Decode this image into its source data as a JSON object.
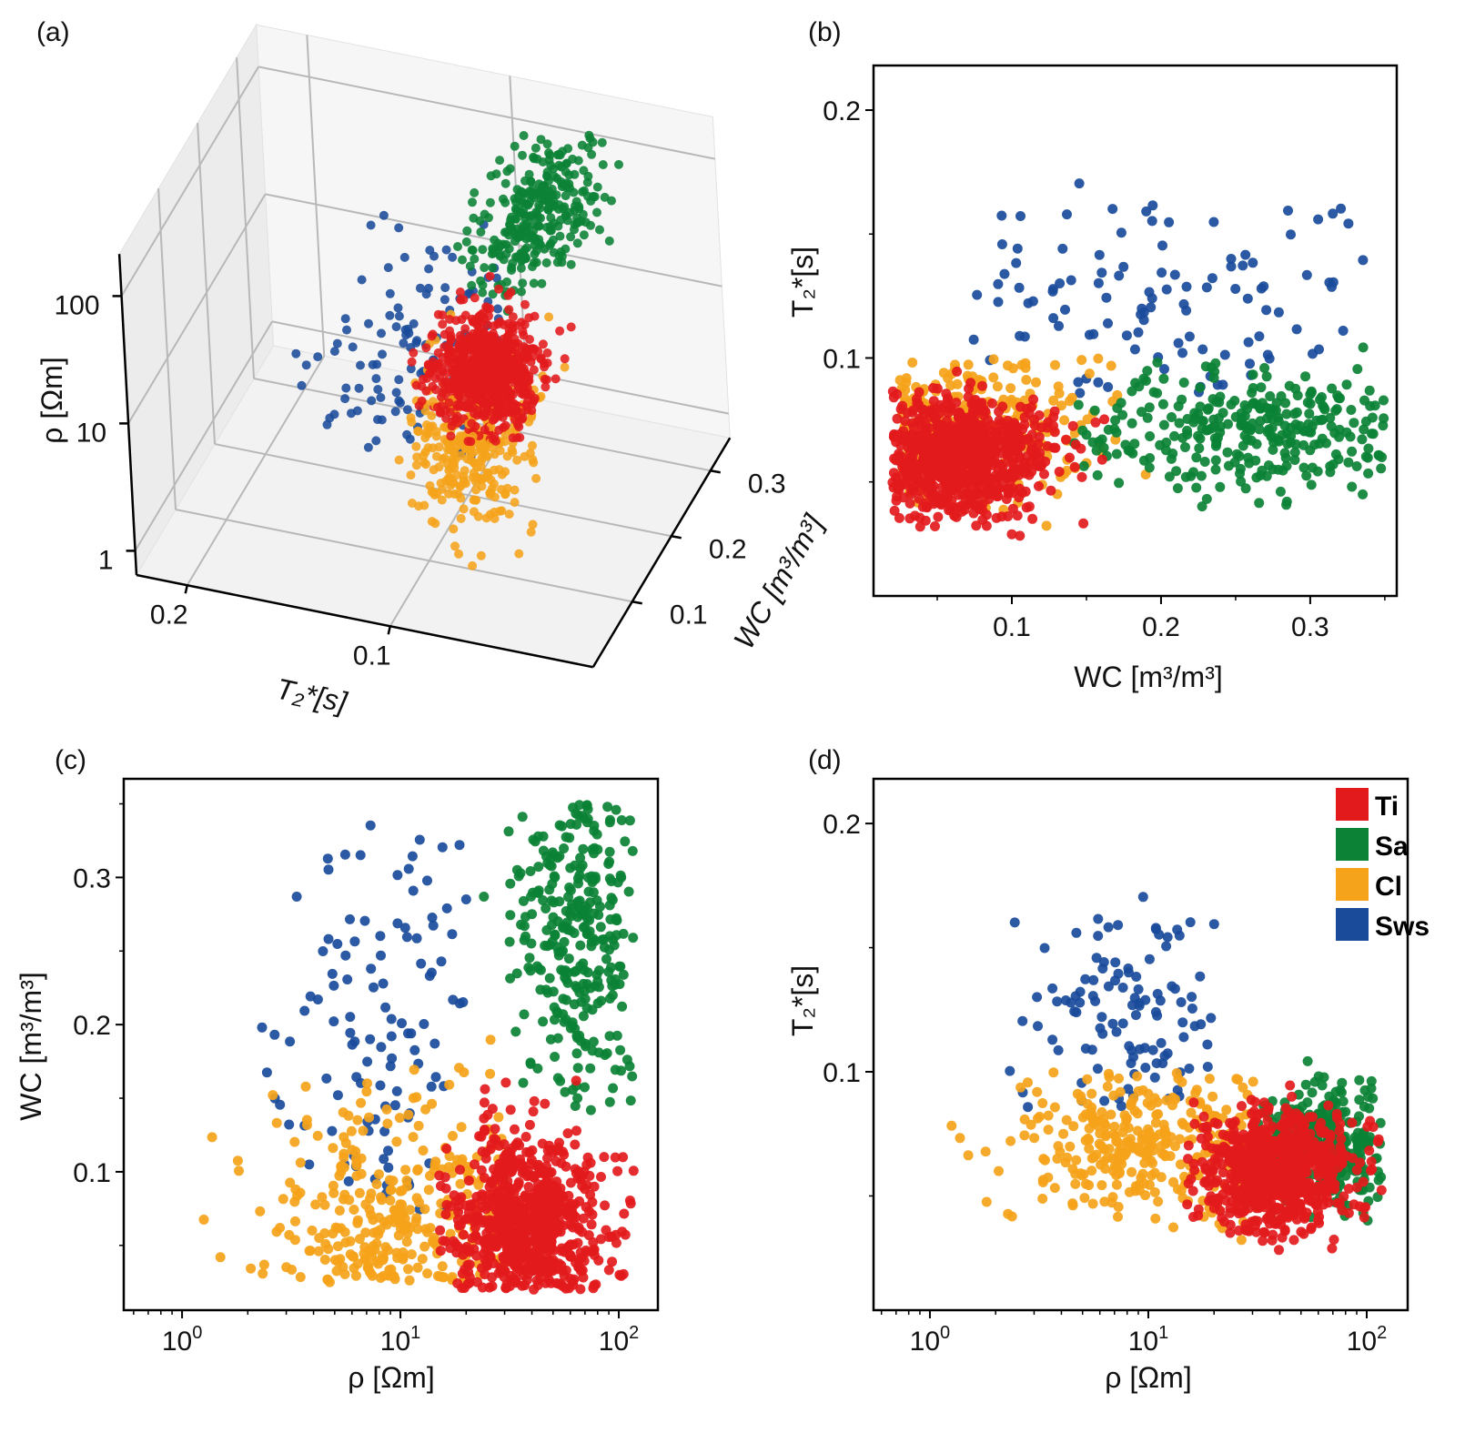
{
  "chart_data": [
    {
      "panel": "(a)",
      "type": "scatter",
      "projection": "3d",
      "xlabel": "T₂*[s]",
      "ylabel": "WC [m³/m³]",
      "zlabel": "ρ [Ωm]",
      "xlim": [
        0,
        0.225
      ],
      "ylim": [
        0,
        0.35
      ],
      "zlim_log10": [
        -0.19,
        2.33
      ],
      "x_ticks": [
        "0.1",
        "0.2"
      ],
      "y_ticks": [
        "0.1",
        "0.2",
        "0.3"
      ],
      "z_ticks": [
        "1",
        "10",
        "100"
      ]
    },
    {
      "panel": "(b)",
      "type": "scatter",
      "xlabel": "WC [m³/m³]",
      "ylabel": "T₂*[s]",
      "xlim": [
        0.0073,
        0.358
      ],
      "ylim": [
        0.004,
        0.218
      ],
      "x_ticks": [
        "0.1",
        "0.2",
        "0.3"
      ],
      "y_ticks": [
        "0.1",
        "0.2"
      ]
    },
    {
      "panel": "(c)",
      "type": "scatter",
      "xscale": "log",
      "xlabel": "ρ [Ωm]",
      "ylabel": "WC [m³/m³]",
      "xlim_log10": [
        -0.267,
        2.179
      ],
      "ylim": [
        0.006,
        0.367
      ],
      "x_ticks": [
        "10^0",
        "10^1",
        "10^2"
      ],
      "y_ticks": [
        "0.1",
        "0.2",
        "0.3"
      ]
    },
    {
      "panel": "(d)",
      "type": "scatter",
      "xscale": "log",
      "xlabel": "ρ [Ωm]",
      "ylabel": "T₂*[s]",
      "xlim_log10": [
        -0.258,
        2.1875
      ],
      "ylim": [
        0.004,
        0.218
      ],
      "x_ticks": [
        "10^0",
        "10^1",
        "10^2"
      ],
      "y_ticks": [
        "0.1",
        "0.2"
      ],
      "legend": "top-right"
    }
  ],
  "series": [
    {
      "name": "Sws",
      "color": "#1a4b9b",
      "count": 110,
      "log10_rho": {
        "mean": 0.9,
        "sd": 0.28,
        "min": 0.3,
        "max": 1.5
      },
      "wc": {
        "mean": 0.2,
        "sd": 0.08,
        "min": 0.05,
        "max": 0.35
      },
      "t2": {
        "mean": 0.12,
        "sd": 0.028,
        "min": 0.085,
        "max": 0.21
      }
    },
    {
      "name": "Cl",
      "color": "#f5a31a",
      "count": 320,
      "log10_rho": {
        "mean": 1.0,
        "sd": 0.3,
        "min": -0.15,
        "max": 1.5
      },
      "wc": {
        "mean": 0.05,
        "sd": 0.05,
        "min": 0.025,
        "max": 0.23
      },
      "t2": {
        "mean": 0.07,
        "sd": 0.015,
        "min": 0.03,
        "max": 0.1
      }
    },
    {
      "name": "Sa",
      "color": "#0b8235",
      "count": 300,
      "log10_rho": {
        "mean": 1.82,
        "sd": 0.14,
        "min": 1.2,
        "max": 2.08
      },
      "wc": {
        "mean": 0.27,
        "sd": 0.07,
        "min": 0.14,
        "max": 0.35
      },
      "t2": {
        "mean": 0.07,
        "sd": 0.014,
        "min": 0.04,
        "max": 0.13
      }
    },
    {
      "name": "Ti",
      "color": "#e31a1c",
      "count": 750,
      "log10_rho": {
        "mean": 1.58,
        "sd": 0.17,
        "min": 1.17,
        "max": 2.08
      },
      "wc": {
        "mean": 0.06,
        "sd": 0.035,
        "min": 0.02,
        "max": 0.165
      },
      "t2": {
        "mean": 0.06,
        "sd": 0.012,
        "min": 0.028,
        "max": 0.1
      }
    }
  ],
  "legend": {
    "items": [
      "Ti",
      "Sa",
      "Cl",
      "Sws"
    ]
  }
}
